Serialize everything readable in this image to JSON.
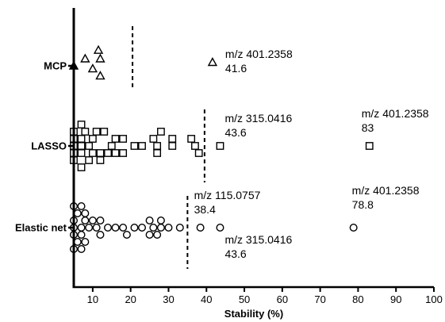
{
  "chart_data": {
    "type": "scatter",
    "xlabel": "Stability (%)",
    "ylabel": "",
    "xlim": [
      5,
      100
    ],
    "xticks": [
      10,
      20,
      30,
      40,
      50,
      60,
      70,
      80,
      90,
      100
    ],
    "categories": [
      "MCP",
      "LASSO",
      "Elastic net"
    ],
    "series": [
      {
        "category": "MCP",
        "marker": "triangle",
        "points": [
          {
            "x": 5,
            "offset": 0,
            "filled": true
          },
          {
            "x": 8,
            "offset": 1
          },
          {
            "x": 11.5,
            "offset": 2.2
          },
          {
            "x": 12,
            "offset": 1
          },
          {
            "x": 10,
            "offset": -0.4
          },
          {
            "x": 12,
            "offset": -1.4
          },
          {
            "x": 41.6,
            "offset": 0.5
          }
        ],
        "threshold": 20.5,
        "annotations": [
          {
            "x": 41.6,
            "lines": [
              "m/z 401.2358",
              "41.6"
            ]
          }
        ]
      },
      {
        "category": "LASSO",
        "marker": "square",
        "points": [
          {
            "x": 5,
            "offset": 0
          },
          {
            "x": 7,
            "offset": 0
          },
          {
            "x": 9,
            "offset": 0
          },
          {
            "x": 15,
            "offset": 0
          },
          {
            "x": 21,
            "offset": 0
          },
          {
            "x": 23,
            "offset": 0
          },
          {
            "x": 27,
            "offset": 0
          },
          {
            "x": 31,
            "offset": 0
          },
          {
            "x": 37,
            "offset": 0
          },
          {
            "x": 43.6,
            "offset": 0
          },
          {
            "x": 83,
            "offset": 0
          },
          {
            "x": 5,
            "offset": 1
          },
          {
            "x": 7,
            "offset": 1
          },
          {
            "x": 10,
            "offset": 1
          },
          {
            "x": 16,
            "offset": 1
          },
          {
            "x": 18,
            "offset": 1
          },
          {
            "x": 26,
            "offset": 1
          },
          {
            "x": 31,
            "offset": 1
          },
          {
            "x": 36,
            "offset": 1
          },
          {
            "x": 5,
            "offset": 2
          },
          {
            "x": 8,
            "offset": 2
          },
          {
            "x": 11,
            "offset": 2
          },
          {
            "x": 13,
            "offset": 2
          },
          {
            "x": 28,
            "offset": 2
          },
          {
            "x": 7,
            "offset": 3
          },
          {
            "x": 5,
            "offset": -1
          },
          {
            "x": 7,
            "offset": -1
          },
          {
            "x": 10,
            "offset": -1
          },
          {
            "x": 12,
            "offset": -1
          },
          {
            "x": 14,
            "offset": -1
          },
          {
            "x": 16,
            "offset": -1
          },
          {
            "x": 18,
            "offset": -1
          },
          {
            "x": 27,
            "offset": -1
          },
          {
            "x": 38,
            "offset": -1
          },
          {
            "x": 5,
            "offset": -2
          },
          {
            "x": 9,
            "offset": -2
          },
          {
            "x": 12,
            "offset": -2
          },
          {
            "x": 7,
            "offset": -3
          }
        ],
        "threshold": 39.5,
        "annotations": [
          {
            "x": 43.6,
            "lines": [
              "m/z 315.0416",
              "43.6"
            ]
          },
          {
            "x": 83,
            "lines": [
              "m/z 401.2358",
              "83"
            ]
          }
        ]
      },
      {
        "category": "Elastic net",
        "marker": "circle",
        "points": [
          {
            "x": 5,
            "offset": 0
          },
          {
            "x": 7,
            "offset": 0
          },
          {
            "x": 9,
            "offset": 0
          },
          {
            "x": 11,
            "offset": 0
          },
          {
            "x": 14,
            "offset": 0
          },
          {
            "x": 16,
            "offset": 0
          },
          {
            "x": 18,
            "offset": 0
          },
          {
            "x": 21,
            "offset": 0
          },
          {
            "x": 23,
            "offset": 0
          },
          {
            "x": 26,
            "offset": 0
          },
          {
            "x": 28,
            "offset": 0
          },
          {
            "x": 30,
            "offset": 0
          },
          {
            "x": 33,
            "offset": 0
          },
          {
            "x": 38.4,
            "offset": 0
          },
          {
            "x": 43.6,
            "offset": 0
          },
          {
            "x": 78.8,
            "offset": 0
          },
          {
            "x": 5,
            "offset": 1
          },
          {
            "x": 8,
            "offset": 1
          },
          {
            "x": 10,
            "offset": 1
          },
          {
            "x": 12,
            "offset": 1
          },
          {
            "x": 25,
            "offset": 1
          },
          {
            "x": 28,
            "offset": 1
          },
          {
            "x": 6,
            "offset": 2
          },
          {
            "x": 8,
            "offset": 2
          },
          {
            "x": 5,
            "offset": 3
          },
          {
            "x": 7,
            "offset": 3
          },
          {
            "x": 5,
            "offset": -1
          },
          {
            "x": 7,
            "offset": -1
          },
          {
            "x": 12,
            "offset": -1
          },
          {
            "x": 19,
            "offset": -1
          },
          {
            "x": 25,
            "offset": -1
          },
          {
            "x": 27,
            "offset": -1
          },
          {
            "x": 6,
            "offset": -2
          },
          {
            "x": 8,
            "offset": -2
          },
          {
            "x": 5,
            "offset": -3
          },
          {
            "x": 7,
            "offset": -3
          }
        ],
        "threshold": 35,
        "annotations": [
          {
            "x": 38.4,
            "pos": "above",
            "lines": [
              "m/z 115.0757",
              "38.4"
            ]
          },
          {
            "x": 43.6,
            "pos": "below",
            "lines": [
              "m/z 315.0416",
              "43.6"
            ]
          },
          {
            "x": 78.8,
            "pos": "above",
            "lines": [
              "m/z 401.2358",
              "78.8"
            ]
          }
        ]
      }
    ]
  }
}
